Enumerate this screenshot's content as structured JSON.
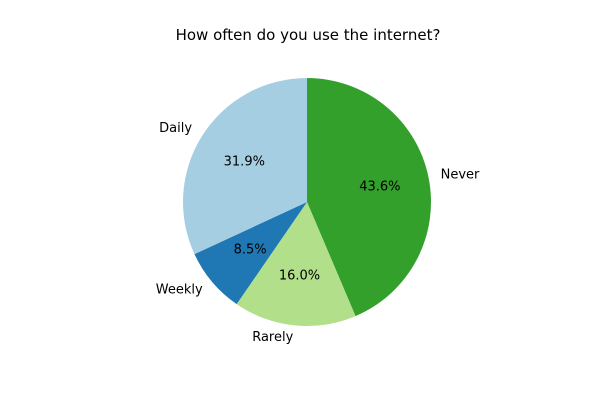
{
  "chart_data": {
    "type": "pie",
    "title": "How often do you use the internet?",
    "categories": [
      "Never",
      "Rarely",
      "Weekly",
      "Daily"
    ],
    "values": [
      43.6,
      16.0,
      8.5,
      31.9
    ],
    "percent_labels": [
      "43.6%",
      "16.0%",
      "8.5%",
      "31.9%"
    ],
    "colors": [
      "#33a02c",
      "#b2df8a",
      "#1f78b4",
      "#a6cee3"
    ],
    "start_angle": 90,
    "direction": "clockwise",
    "legend": "none"
  }
}
